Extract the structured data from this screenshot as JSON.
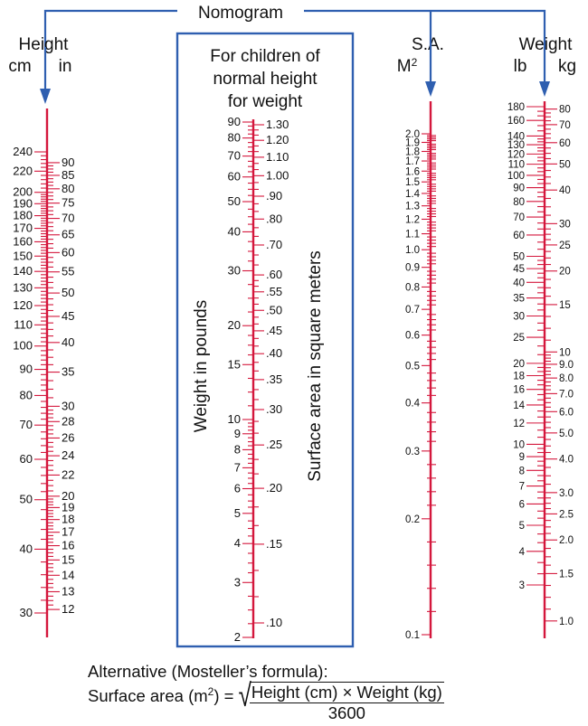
{
  "title": "Nomogram",
  "height_scale": {
    "heading": "Height",
    "unit_left": "cm",
    "unit_right": "in",
    "cm_labels": [
      "240",
      "220",
      "200",
      "190",
      "180",
      "170",
      "160",
      "150",
      "140",
      "130",
      "120",
      "110",
      "100",
      "90",
      "80",
      "70",
      "60",
      "50",
      "40",
      "30"
    ],
    "in_labels": [
      "90",
      "85",
      "80",
      "75",
      "70",
      "65",
      "60",
      "55",
      "50",
      "45",
      "40",
      "35",
      "30",
      "28",
      "26",
      "24",
      "22",
      "20",
      "19",
      "18",
      "17",
      "16",
      "15",
      "14",
      "13",
      "12"
    ]
  },
  "normal_box": {
    "lines": [
      "For children of",
      "normal height",
      "for weight"
    ],
    "left_axis_label": "Weight in pounds",
    "right_axis_label": "Surface area in square meters",
    "lb_labels": [
      "90",
      "80",
      "70",
      "60",
      "50",
      "40",
      "30",
      "20",
      "15",
      "10",
      "9",
      "8",
      "7",
      "6",
      "5",
      "4",
      "3",
      "2"
    ],
    "sa_labels": [
      "1.30",
      "1.20",
      "1.10",
      "1.00",
      ".90",
      ".80",
      ".70",
      ".60",
      ".55",
      ".50",
      ".45",
      ".40",
      ".35",
      ".30",
      ".25",
      ".20",
      ".15",
      ".10"
    ]
  },
  "sa_scale": {
    "heading": "S.A.",
    "unit_base": "M",
    "unit_exp": "2",
    "labels": [
      "2.0",
      "1.9",
      "1.8",
      "1.7",
      "1.6",
      "1.5",
      "1.4",
      "1.3",
      "1.2",
      "1.1",
      "1.0",
      "0.9",
      "0.8",
      "0.7",
      "0.6",
      "0.5",
      "0.4",
      "0.3",
      "0.2",
      "0.1"
    ]
  },
  "weight_scale": {
    "heading": "Weight",
    "unit_left": "lb",
    "unit_right": "kg",
    "lb_labels": [
      "180",
      "160",
      "140",
      "130",
      "120",
      "110",
      "100",
      "90",
      "80",
      "70",
      "60",
      "50",
      "45",
      "40",
      "35",
      "30",
      "25",
      "20",
      "18",
      "16",
      "14",
      "12",
      "10",
      "9",
      "8",
      "7",
      "6",
      "5",
      "4",
      "3"
    ],
    "kg_labels": [
      "80",
      "70",
      "60",
      "50",
      "40",
      "30",
      "25",
      "20",
      "15",
      "10",
      "9.0",
      "8.0",
      "7.0",
      "6.0",
      "5.0",
      "4.0",
      "3.0",
      "2.5",
      "2.0",
      "1.5",
      "1.0"
    ]
  },
  "formula": {
    "line1": "Alternative (Mosteller’s formula):",
    "lhs_text": "Surface area (m",
    "lhs_exp": "2",
    "lhs_close": ") =",
    "numerator": "Height (cm) × Weight (kg)",
    "denominator": "3600"
  },
  "colors": {
    "scale_red": "#d4173c",
    "frame_blue": "#2f5fb0"
  }
}
